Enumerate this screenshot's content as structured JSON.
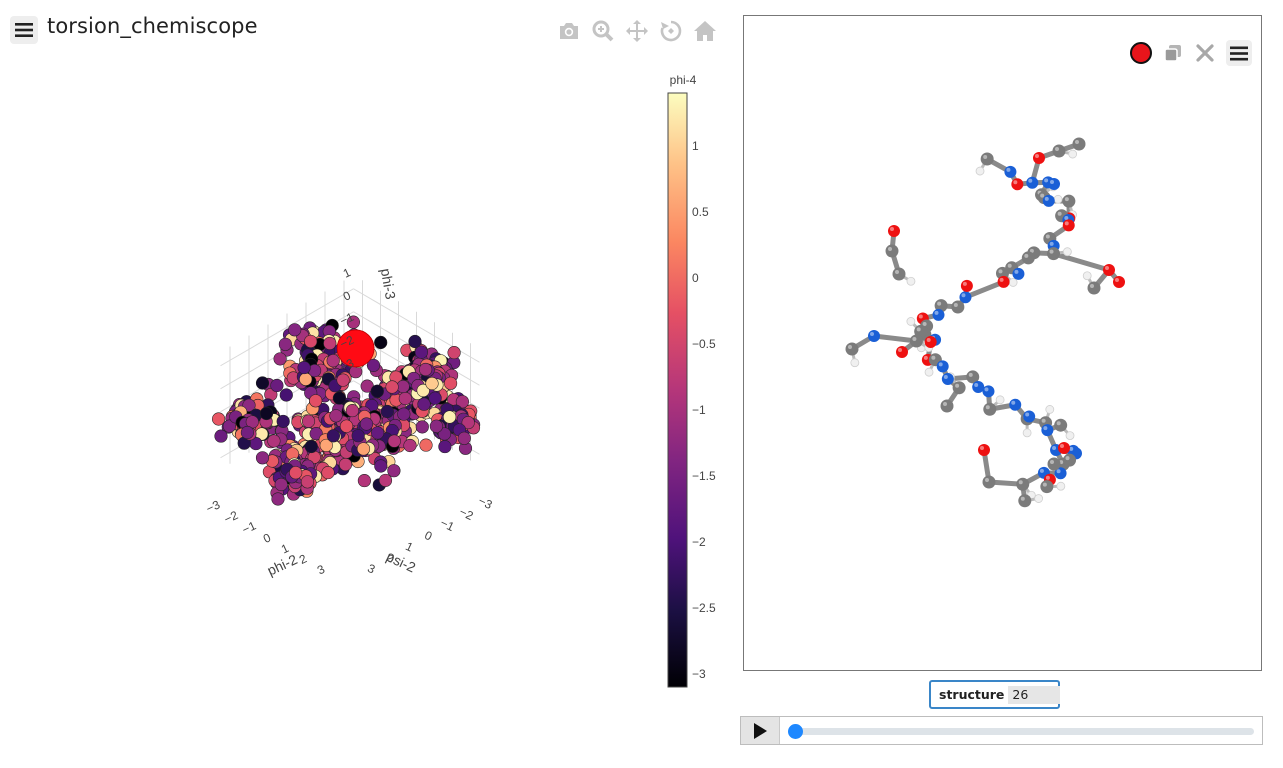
{
  "app": {
    "title": "torsion_chemiscope"
  },
  "modebar": {
    "icons": [
      "camera-icon",
      "zoom-icon",
      "pan-icon",
      "orbit-icon",
      "home-icon"
    ]
  },
  "chart_data": {
    "type": "scatter3d",
    "axes": {
      "x": {
        "label": "psi-2",
        "ticks": [
          "−3",
          "−2",
          "−1",
          "0",
          "1",
          "2",
          "3"
        ]
      },
      "y": {
        "label": "phi-2",
        "ticks": [
          "−3",
          "−2",
          "−1",
          "0",
          "1",
          "2",
          "3"
        ]
      },
      "z": {
        "label": "phi-3",
        "ticks": [
          "−3",
          "−2",
          "−1",
          "0",
          "1"
        ]
      }
    },
    "colorbar": {
      "title": "phi-4",
      "ticks": [
        "1",
        "0.5",
        "0",
        "−0.5",
        "−1",
        "−1.5",
        "−2",
        "−2.5",
        "−3"
      ],
      "colorscale": "magma",
      "range": [
        -3.1,
        1.4
      ]
    },
    "selected_marker_color": "#ff0a14",
    "clusters": [
      {
        "center": [
          -2.8,
          2.8,
          -1.6
        ],
        "spread": 0.35
      },
      {
        "center": [
          -2.9,
          -0.4,
          -2.2
        ],
        "spread": 0.5
      },
      {
        "center": [
          -1.2,
          0.3,
          -2.0
        ],
        "spread": 0.75
      },
      {
        "center": [
          0.6,
          -0.6,
          -2.2
        ],
        "spread": 0.7
      },
      {
        "center": [
          2.7,
          -0.2,
          -2.4
        ],
        "spread": 0.45
      },
      {
        "center": [
          2.4,
          -2.9,
          -1.6
        ],
        "spread": 0.45
      },
      {
        "center": [
          -2.0,
          2.2,
          0.5
        ],
        "spread": 0.5
      },
      {
        "center": [
          -0.5,
          -2.0,
          0.0
        ],
        "spread": 0.7
      }
    ]
  },
  "viewer": {
    "record_color": "#e8151b",
    "icons": [
      "record-icon",
      "duplicate-icon",
      "close-icon",
      "menu-icon"
    ]
  },
  "molecule": {
    "colors": {
      "carbon": "#7b7b7b",
      "oxygen": "#ee1111",
      "nitrogen": "#1a5fd6",
      "hydrogen": "#f0f0f0"
    }
  },
  "structure": {
    "label": "structure",
    "value": "26"
  },
  "player": {
    "progress": 0.0
  }
}
